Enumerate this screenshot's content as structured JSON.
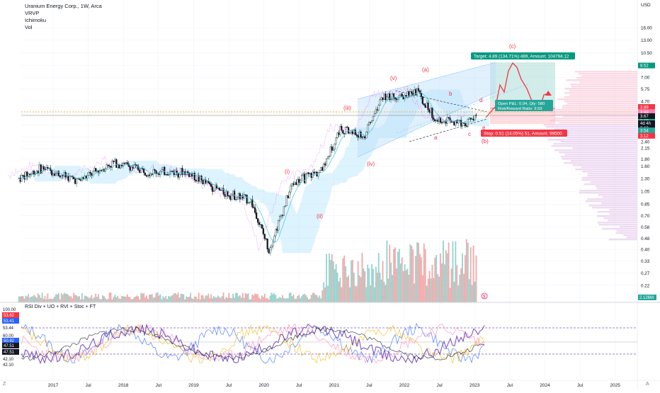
{
  "header": {
    "symbol_line": "Uranium Energy Corp., 1W, Arca",
    "indicators": [
      "VRVP",
      "Ichimoku",
      "Vol"
    ]
  },
  "rsi_panel": {
    "title": "RSI Div + UO + RVI + Stoc + FT"
  },
  "corner": {
    "left_label": "Z",
    "right_label": "A"
  },
  "price_axis": {
    "currency": "USD",
    "ticks": [
      "16.00",
      "13.00",
      "10.50",
      "8.50",
      "7.00",
      "5.75",
      "4.70",
      "3.85",
      "3.15",
      "2.60",
      "2.40",
      "2.15",
      "1.80",
      "1.60",
      "1.30",
      "1.05",
      "0.85",
      "0.70",
      "0.58",
      "0.48",
      "0.40",
      "0.33",
      "0.27",
      "0.22",
      "0.18"
    ]
  },
  "price_badges": [
    {
      "text": "8.52",
      "color": "#089981"
    },
    {
      "text": "3.89",
      "color": "#f23645"
    },
    {
      "text": "3.88",
      "color": "#ff7fb0"
    },
    {
      "text": "3.82",
      "color": "#22ab94"
    },
    {
      "text": "3.68",
      "color": "#22ab94"
    },
    {
      "text": "3.67",
      "color": "#131722"
    },
    {
      "text": "4d 4h",
      "color": "#131722"
    },
    {
      "text": "3.67",
      "color": "#b2b5be"
    },
    {
      "text": "3.63",
      "color": "#131722"
    },
    {
      "text": "3.54",
      "color": "#26a69a"
    },
    {
      "text": "3.12",
      "color": "#f23645"
    }
  ],
  "volume_badge": {
    "text": "2.126M",
    "color": "#26a69a"
  },
  "rsi_axis": {
    "ticks": [
      "100.00",
      "60.00",
      "53.44",
      "42.10",
      "42.10",
      "20.00",
      "0.00"
    ]
  },
  "rsi_badges": [
    {
      "text": "53.62",
      "color": "#f23645"
    },
    {
      "text": "53.41",
      "color": "#2962ff"
    },
    {
      "text": "50.92",
      "color": "#2962ff"
    },
    {
      "text": "47.51",
      "color": "#131722"
    },
    {
      "text": "47.51",
      "color": "#131722"
    }
  ],
  "time_axis": {
    "labels": [
      "2017",
      "Jul",
      "2018",
      "Jul",
      "2019",
      "Jul",
      "2020",
      "Jul",
      "2021",
      "Jul",
      "2022",
      "Jul",
      "2023",
      "Jul",
      "2024",
      "Jul",
      "2025"
    ]
  },
  "trade": {
    "target_label": "Target: 4.89 (134.71%) 489, Amount: 104794.12",
    "open_pl_label": "Open P&L: 0.04, Qty: 580",
    "rr_label": "Risk/Reward Ratio: 9.59",
    "stop_label": "Stop: 0.51 (14.05%) 51, Amount: 99500"
  },
  "waves": {
    "c_top": "(c)",
    "a": "(a)",
    "v": "(v)",
    "iii": "(iii)",
    "i": "(i)",
    "ii": "(ii)",
    "iv": "(iv)",
    "b_paren": "(b)",
    "e": "e",
    "b_small": "b",
    "d_small": "d",
    "a_small": "a",
    "c_small": "c"
  },
  "chart_data": {
    "type": "candlestick",
    "title": "Uranium Energy Corp., 1W, Arca",
    "price_scale": "log",
    "ylim": [
      0.18,
      16.0
    ],
    "series": [
      {
        "name": "price",
        "x": [
          "2016-09",
          "2017-01",
          "2017-07",
          "2018-01",
          "2018-07",
          "2019-01",
          "2019-07",
          "2019-12",
          "2020-03",
          "2020-07",
          "2020-12",
          "2021-03",
          "2021-07",
          "2021-10",
          "2022-04",
          "2022-07",
          "2022-12",
          "2023-02"
        ],
        "values": [
          1.3,
          1.55,
          1.25,
          1.7,
          1.45,
          1.45,
          1.05,
          0.9,
          0.4,
          1.2,
          1.5,
          3.0,
          2.6,
          5.0,
          5.5,
          3.5,
          3.3,
          3.67
        ]
      },
      {
        "name": "volume",
        "x": [
          "2020-12",
          "2021-06",
          "2021-11",
          "2022-04",
          "2022-09",
          "2023-02"
        ],
        "values": [
          0.5,
          1.0,
          1.5,
          2.0,
          1.4,
          2.126
        ]
      }
    ],
    "rsi_ylim": [
      0,
      100
    ],
    "rsi_levels": [
      53.44,
      42.1
    ]
  }
}
